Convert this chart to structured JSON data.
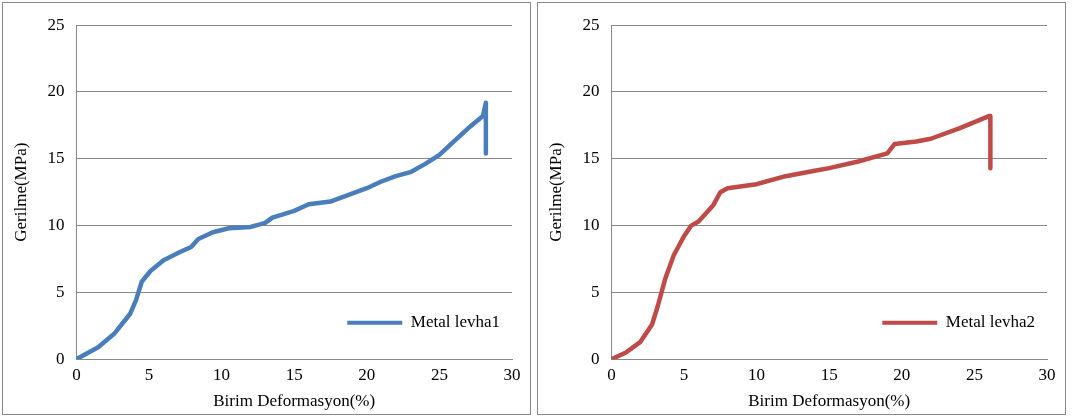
{
  "chart_data": [
    {
      "type": "line",
      "xlabel": "Birim Deformasyon(%)",
      "ylabel": "Gerilme(MPa)",
      "xlim": [
        0,
        30
      ],
      "xticks": [
        0,
        5,
        10,
        15,
        20,
        25,
        30
      ],
      "ylim": [
        0,
        25
      ],
      "yticks": [
        0,
        5,
        10,
        15,
        20,
        25
      ],
      "grid": "y",
      "legend": "bottom right",
      "marker": "none",
      "line_style": "solid",
      "series": [
        {
          "name": "Metal levha1",
          "color": "#4a7ebb",
          "x": [
            0,
            1.5,
            2.6,
            3.7,
            4.1,
            4.5,
            5.1,
            6,
            7.1,
            7.9,
            8.4,
            9.4,
            10.5,
            12,
            13,
            13.5,
            15,
            16,
            17.5,
            18,
            20,
            21,
            22,
            23,
            24,
            25,
            26,
            27,
            28,
            28.2,
            28.2
          ],
          "values": [
            0,
            0.9,
            1.9,
            3.4,
            4.4,
            5.8,
            6.6,
            7.4,
            8,
            8.4,
            9,
            9.5,
            9.8,
            9.9,
            10.2,
            10.6,
            11.1,
            11.6,
            11.8,
            12,
            12.8,
            13.3,
            13.7,
            14,
            14.6,
            15.3,
            16.3,
            17.3,
            18.2,
            19.2,
            15.4
          ]
        }
      ]
    },
    {
      "type": "line",
      "xlabel": "Birim Deformasyon(%)",
      "ylabel": "Gerilme(MPa)",
      "xlim": [
        0,
        30
      ],
      "xticks": [
        0,
        5,
        10,
        15,
        20,
        25,
        30
      ],
      "ylim": [
        0,
        25
      ],
      "yticks": [
        0,
        5,
        10,
        15,
        20,
        25
      ],
      "grid": "y",
      "legend": "bottom right",
      "marker": "none",
      "line_style": "solid",
      "series": [
        {
          "name": "Metal levha2",
          "color": "#be4b48",
          "x": [
            0,
            1,
            2,
            2.8,
            3.2,
            3.7,
            4.3,
            5,
            5.5,
            6,
            7,
            7.5,
            8,
            10,
            12,
            14,
            15,
            17,
            19,
            19.5,
            21,
            22,
            24,
            26,
            26.1,
            26.1
          ],
          "values": [
            0,
            0.5,
            1.3,
            2.6,
            4,
            6,
            7.8,
            9.2,
            10,
            10.3,
            11.5,
            12.5,
            12.8,
            13.1,
            13.7,
            14.1,
            14.3,
            14.8,
            15.4,
            16.1,
            16.3,
            16.5,
            17.3,
            18.2,
            18.2,
            14.3
          ]
        }
      ]
    }
  ]
}
